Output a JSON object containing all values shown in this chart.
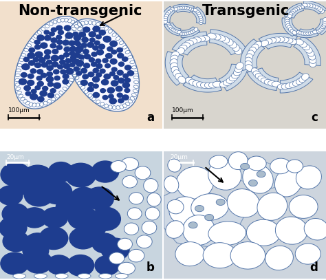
{
  "col_titles": [
    "Non-transgenic",
    "Transgenic"
  ],
  "col_title_fontsize": 15,
  "col_title_fontweight": "bold",
  "panel_label_fontsize": 12,
  "scale_bar_a": "100μm",
  "scale_bar_b": "20μm",
  "scale_bar_c": "100μm",
  "scale_bar_d": "20μm",
  "panel_bg_a": "#f2e0cc",
  "panel_bg_b": "#c8d5df",
  "panel_bg_c": "#d8d5ce",
  "panel_bg_d": "#cdd5de",
  "blue_dark": "#1e3d8f",
  "blue_mid": "#5577aa",
  "blue_light": "#aabccc",
  "blue_pale": "#d0dce8",
  "wall_color": "#8899bb",
  "arrow_color": "#111111",
  "outer_bg": "#ffffff"
}
